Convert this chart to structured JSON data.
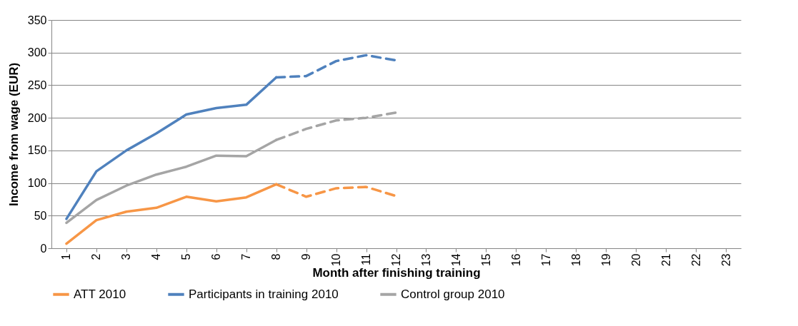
{
  "chart_data": {
    "type": "line",
    "xlabel": "Month after finishing training",
    "ylabel": "Income from wage (EUR)",
    "categories": [
      "1",
      "2",
      "3",
      "4",
      "5",
      "6",
      "7",
      "8",
      "9",
      "10",
      "11",
      "12",
      "13",
      "14",
      "15",
      "16",
      "17",
      "18",
      "19",
      "20",
      "21",
      "22",
      "23"
    ],
    "series": [
      {
        "name": "ATT 2010",
        "color": "#f79646",
        "line_style": "solid",
        "values": [
          7,
          43,
          56,
          62,
          79,
          72,
          78,
          98,
          null,
          null,
          null,
          null,
          null,
          null,
          null,
          null,
          null,
          null,
          null,
          null,
          null,
          null,
          null
        ]
      },
      {
        "name": "Participants in training 2010",
        "color": "#4f81bd",
        "line_style": "solid",
        "values": [
          45,
          118,
          150,
          176,
          205,
          215,
          220,
          262,
          null,
          null,
          null,
          null,
          null,
          null,
          null,
          null,
          null,
          null,
          null,
          null,
          null,
          null,
          null
        ]
      },
      {
        "name": "Control group 2010",
        "color": "#a5a5a5",
        "line_style": "solid",
        "values": [
          39,
          74,
          96,
          113,
          125,
          142,
          141,
          166,
          null,
          null,
          null,
          null,
          null,
          null,
          null,
          null,
          null,
          null,
          null,
          null,
          null,
          null,
          null
        ]
      },
      {
        "color": "#f79646",
        "line_style": "dashed",
        "values": [
          null,
          null,
          null,
          null,
          null,
          null,
          null,
          98,
          79,
          92,
          94,
          80,
          null,
          null,
          null,
          null,
          null,
          null,
          null,
          null,
          null,
          null,
          null
        ]
      },
      {
        "color": "#4f81bd",
        "line_style": "dashed",
        "values": [
          null,
          null,
          null,
          null,
          null,
          null,
          null,
          262,
          264,
          287,
          296,
          288,
          null,
          null,
          null,
          null,
          null,
          null,
          null,
          null,
          null,
          null,
          null
        ]
      },
      {
        "color": "#a5a5a5",
        "line_style": "dashed",
        "values": [
          null,
          null,
          null,
          null,
          null,
          null,
          null,
          166,
          183,
          196,
          200,
          208,
          null,
          null,
          null,
          null,
          null,
          null,
          null,
          null,
          null,
          null,
          null
        ]
      }
    ],
    "ylim": [
      0,
      350
    ],
    "yticks": [
      0,
      50,
      100,
      150,
      200,
      250,
      300,
      350
    ],
    "grid": "y",
    "legend": "bottom",
    "marker": "none"
  }
}
